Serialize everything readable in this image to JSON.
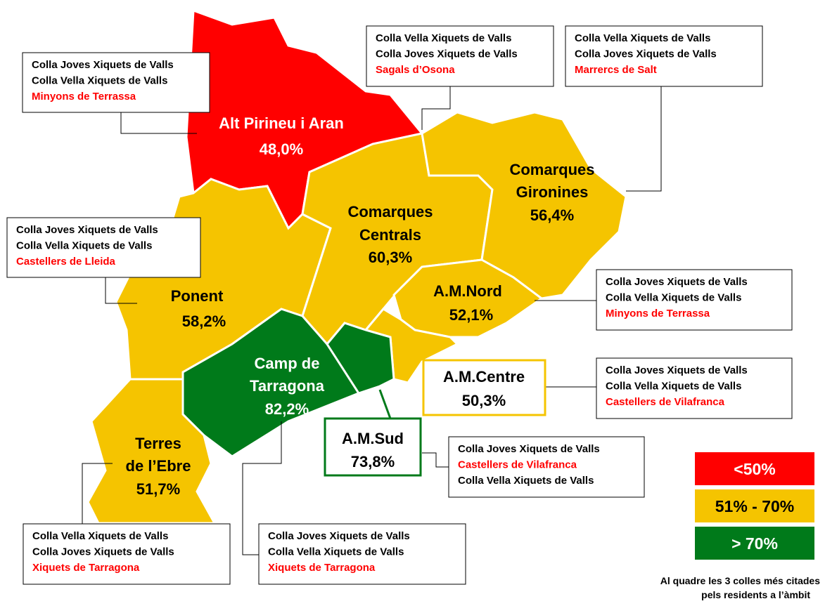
{
  "regions": [
    {
      "name": "Alt Pirineu i Aran",
      "value": "48,0%"
    },
    {
      "name": [
        "Comarques",
        "Centrals"
      ],
      "value": "60,3%"
    },
    {
      "name": [
        "Comarques",
        "Gironines"
      ],
      "value": "56,4%"
    },
    {
      "name": "Ponent",
      "value": "58,2%"
    },
    {
      "name": "A.M.Nord",
      "value": "52,1%"
    },
    {
      "name": [
        "Camp de",
        "Tarragona"
      ],
      "value": "82,2%"
    },
    {
      "name": "A.M.Centre",
      "value": "50,3%"
    },
    {
      "name": "A.M.Sud",
      "value": "73,8%"
    },
    {
      "name": [
        "Terres",
        "de l’Ebre"
      ],
      "value": "51,7%"
    }
  ],
  "boxes": [
    [
      "Colla Joves Xiquets de Valls",
      "Colla Vella Xiquets de Valls",
      "Minyons de Terrassa"
    ],
    [
      "Colla Vella Xiquets de Valls",
      "Colla Joves Xiquets de Valls",
      "Sagals d’Osona"
    ],
    [
      "Colla Vella Xiquets de Valls",
      "Colla Joves Xiquets de Valls",
      "Marrercs de Salt"
    ],
    [
      "Colla Joves Xiquets de Valls",
      "Colla Vella Xiquets de Valls",
      "Castellers de Lleida"
    ],
    [
      "Colla Joves Xiquets de Valls",
      "Colla Vella Xiquets de Valls",
      "Minyons de Terrassa"
    ],
    [
      "Colla Joves Xiquets de Valls",
      "Colla Vella Xiquets de Valls",
      "Castellers de Vilafranca"
    ],
    [
      "Colla Joves Xiquets de Valls",
      "Castellers de Vilafranca",
      "Colla Vella Xiquets de Valls"
    ],
    [
      "Colla Vella Xiquets de Valls",
      "Colla Joves Xiquets de Valls",
      "Xiquets de Tarragona"
    ],
    [
      "Colla Joves Xiquets de Valls",
      "Colla Vella Xiquets de Valls",
      "Xiquets de Tarragona"
    ]
  ],
  "legend": [
    "<50%",
    "51% - 70%",
    "> 70%"
  ],
  "note": [
    "Al quadre les 3 colles més citades",
    "pels residents a l’àmbit"
  ]
}
